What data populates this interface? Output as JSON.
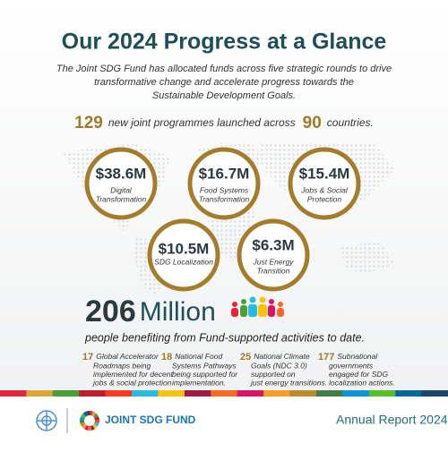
{
  "header": {
    "title": "Our 2024 Progress at a Glance",
    "subtitle": [
      "The Joint SDG Fund has allocated funds across five strategic rounds to drive",
      "transformative change and accelerate progress towards the",
      "Sustainable Development Goals."
    ]
  },
  "summary": {
    "programmes": "129",
    "text1": "new joint programmes launched across",
    "countries": "90",
    "text2": "countries."
  },
  "rounds": [
    {
      "amount": "$38.6M",
      "label": [
        "Digital",
        "Transformation"
      ]
    },
    {
      "amount": "$16.7M",
      "label": [
        "Food Systems",
        "Transformation"
      ]
    },
    {
      "amount": "$15.4M",
      "label": [
        "Jobs & Social",
        "Protection"
      ]
    },
    {
      "amount": "$10.5M",
      "label": [
        "SDG Localization"
      ]
    },
    {
      "amount": "$6.3M",
      "label": [
        "Just Energy",
        "Transition"
      ]
    }
  ],
  "beneficiaries": {
    "number": "206",
    "unit": "Million",
    "text": "people benefiting from Fund-supported activities to date."
  },
  "stats": [
    {
      "number": "17",
      "text": [
        "Global Accelerator",
        "Roadmaps being",
        "implemented for decent",
        "jobs & social protection"
      ]
    },
    {
      "number": "18",
      "text": [
        "National Food",
        "Systems Pathways",
        "being supported for",
        "implementation."
      ]
    },
    {
      "number": "25",
      "text": [
        "National Climate",
        "Goals (NDC 3.0)",
        "supported on",
        "just energy transitions."
      ]
    },
    {
      "number": "177",
      "text": [
        "Subnational",
        "governments",
        "engaged for SDG",
        "localization actions."
      ]
    }
  ],
  "footer": {
    "brand": "JOINT SDG FUND",
    "report": "Annual Report 2024"
  }
}
